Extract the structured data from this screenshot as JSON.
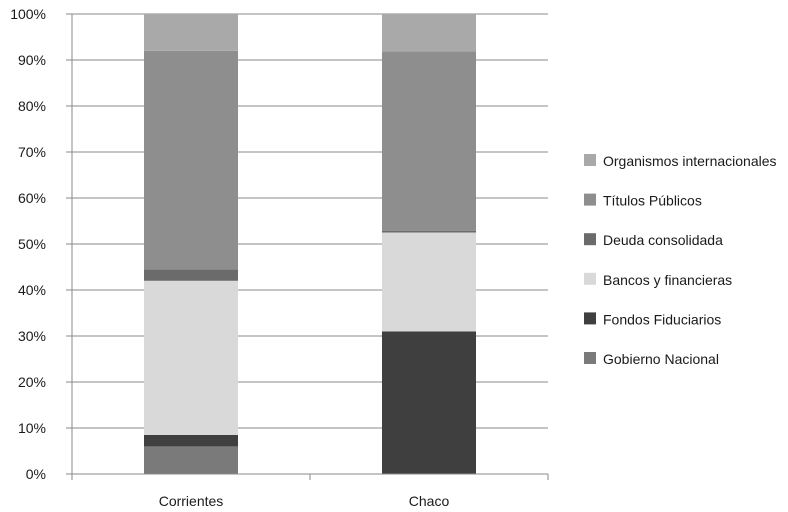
{
  "chart_data": {
    "type": "bar",
    "stacked": true,
    "categories": [
      "Corrientes",
      "Chaco"
    ],
    "series": [
      {
        "name": "Gobierno Nacional",
        "values": [
          6,
          0
        ],
        "color": "#7a7a7a"
      },
      {
        "name": "Fondos Fiduciarios",
        "values": [
          2.5,
          31
        ],
        "color": "#3f3f3f"
      },
      {
        "name": "Bancos y financieras",
        "values": [
          33.5,
          21.5
        ],
        "color": "#d9d9d9"
      },
      {
        "name": "Deuda consolidada",
        "values": [
          2.5,
          0.4
        ],
        "color": "#6b6b6b"
      },
      {
        "name": "Títulos Públicos",
        "values": [
          47.5,
          39
        ],
        "color": "#8e8e8e"
      },
      {
        "name": "Organismos internacionales",
        "values": [
          8,
          8.1
        ],
        "color": "#a9a9a9"
      }
    ],
    "yticks": [
      "0%",
      "10%",
      "20%",
      "30%",
      "40%",
      "50%",
      "60%",
      "70%",
      "80%",
      "90%",
      "100%"
    ],
    "ylim": [
      0,
      100
    ],
    "grid": true,
    "legend_position": "right",
    "title": "",
    "xlabel": "",
    "ylabel": ""
  }
}
